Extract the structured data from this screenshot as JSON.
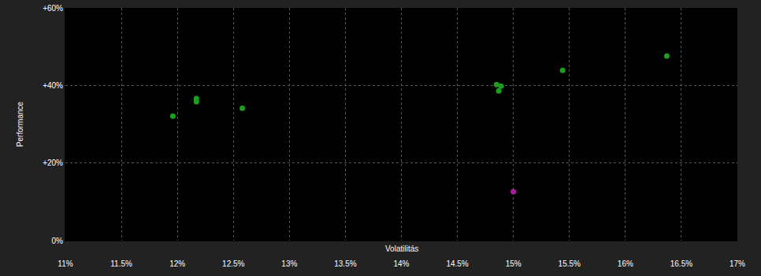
{
  "chart_data": {
    "type": "scatter",
    "x_label": "Volatilitás",
    "y_label": "Performance",
    "xlim": [
      11,
      17
    ],
    "xticks": [
      {
        "value": 11,
        "label": "11%"
      },
      {
        "value": 11.5,
        "label": "11.5%"
      },
      {
        "value": 12,
        "label": "12%"
      },
      {
        "value": 12.5,
        "label": "12.5%"
      },
      {
        "value": 13,
        "label": "13%"
      },
      {
        "value": 13.5,
        "label": "13.5%"
      },
      {
        "value": 14,
        "label": "14%"
      },
      {
        "value": 14.5,
        "label": "14.5%"
      },
      {
        "value": 15,
        "label": "15%"
      },
      {
        "value": 15.5,
        "label": "15.5%"
      },
      {
        "value": 16,
        "label": "16%"
      },
      {
        "value": 16.5,
        "label": "16.5%"
      },
      {
        "value": 17,
        "label": "17%"
      }
    ],
    "ylim": [
      0,
      60
    ],
    "yticks": [
      {
        "value": 0,
        "label": "0%"
      },
      {
        "value": 20,
        "label": "+20%"
      },
      {
        "value": 40,
        "label": "+40%"
      },
      {
        "value": 60,
        "label": "+60%"
      }
    ],
    "grid": true,
    "series": [
      {
        "color": "#1e9e1e",
        "marker": "circle",
        "x": [
          11.96,
          12.17,
          12.17,
          12.58,
          14.85,
          14.89,
          14.87,
          15.44,
          16.37
        ],
        "values": [
          32.1,
          36.6,
          35.8,
          34.1,
          40.2,
          39.8,
          38.6,
          43.9,
          47.6
        ]
      },
      {
        "color": "#b0169e",
        "marker": "circle",
        "x": [
          15.0
        ],
        "values": [
          12.6
        ]
      }
    ]
  }
}
